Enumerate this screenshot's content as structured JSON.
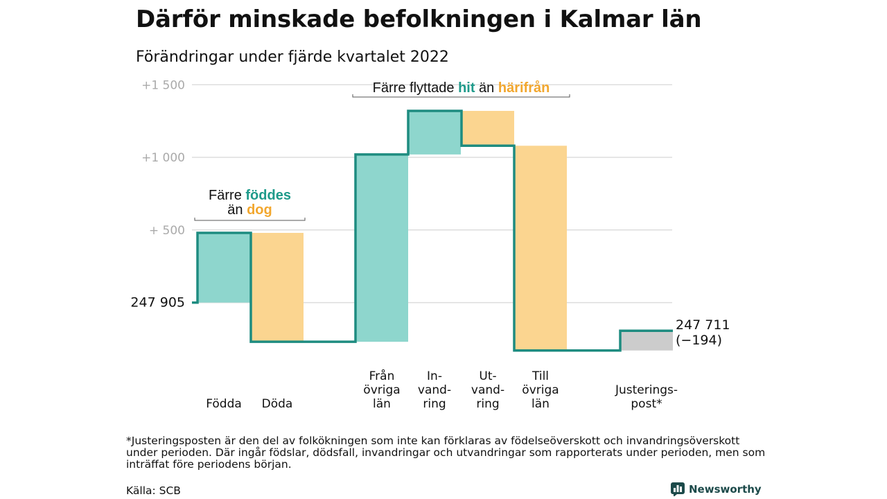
{
  "title": "Därför minskade befolkningen i Kalmar län",
  "subtitle": "Förändringar under fjärde kvartalet 2022",
  "colors": {
    "teal": "#8ed6cd",
    "orange": "#fbd590",
    "gray": "#cccccc",
    "line": "#1e8c80",
    "teal_text": "#1e9a8a",
    "orange_text": "#f2a72e",
    "grid": "#dddddd",
    "tick": "#aaaaaa",
    "brand": "#1c4a4a"
  },
  "chart_data": {
    "type": "waterfall",
    "baseline": 247905,
    "ylim": [
      -360,
      1530
    ],
    "yticks": [
      {
        "value": 0,
        "label": "247 905"
      },
      {
        "value": 500,
        "label": "+ 500"
      },
      {
        "value": 1000,
        "label": "+1 000"
      },
      {
        "value": 1500,
        "label": "+1 500"
      }
    ],
    "steps": [
      {
        "category": "Födda",
        "label_lines": [
          "Födda"
        ],
        "change": 480,
        "color": "teal"
      },
      {
        "category": "Döda",
        "label_lines": [
          "Döda"
        ],
        "change": -750,
        "color": "orange"
      },
      {
        "category": "Från övriga län",
        "label_lines": [
          "Från",
          "övriga",
          "län"
        ],
        "change": 1290,
        "color": "teal"
      },
      {
        "category": "Invandring",
        "label_lines": [
          "In-",
          "vand-",
          "ring"
        ],
        "change": 300,
        "color": "teal"
      },
      {
        "category": "Utvandring",
        "label_lines": [
          "Ut-",
          "vand-",
          "ring"
        ],
        "change": -240,
        "color": "orange"
      },
      {
        "category": "Till övriga län",
        "label_lines": [
          "Till",
          "övriga",
          "län"
        ],
        "change": -1410,
        "color": "orange"
      },
      {
        "category": "Justeringspost*",
        "label_lines": [
          "Justerings-",
          "post*"
        ],
        "change": 136,
        "color": "gray"
      }
    ],
    "end_value": 247711,
    "end_labels": [
      "247 711",
      "(−194)"
    ],
    "annotations": [
      {
        "text_parts": [
          {
            "text": "Färre ",
            "style": "plain"
          },
          {
            "text": "föddes",
            "style": "teal"
          }
        ],
        "text_parts_line2": [
          {
            "text": "än ",
            "style": "plain"
          },
          {
            "text": "dog",
            "style": "orange"
          }
        ],
        "span": [
          0,
          1
        ]
      },
      {
        "text_parts": [
          {
            "text": "Färre flyttade ",
            "style": "plain"
          },
          {
            "text": "hit",
            "style": "teal"
          },
          {
            "text": " än ",
            "style": "plain"
          },
          {
            "text": "härifrån",
            "style": "orange"
          }
        ],
        "span": [
          2,
          5
        ]
      }
    ]
  },
  "footnote": "*Justeringsposten är den del av folkökningen som inte kan förklaras av födelseöverskott och invandringsöverskott under perioden. Där ingår födslar, dödsfall, invandringar och utvandringar som rapporterats under perioden, men som inträffat före periodens början.",
  "source": "Källa: SCB",
  "brand": {
    "name": "Newsworthy",
    "icon": "bar-chart-logo-icon"
  }
}
